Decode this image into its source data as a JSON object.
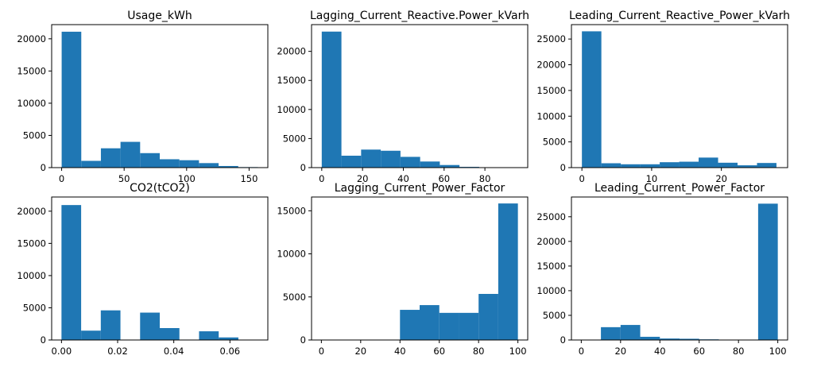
{
  "chart_data": [
    {
      "type": "bar",
      "title": "Usage_kWh",
      "bar_color": "#1f77b4",
      "grid": false,
      "xlim": [
        -8,
        165
      ],
      "ylim": [
        0,
        22200
      ],
      "xticks": [
        0,
        50,
        100,
        150
      ],
      "yticks": [
        0,
        5000,
        10000,
        15000,
        20000
      ],
      "bins": [
        0,
        15.7,
        31.4,
        47.1,
        62.8,
        78.5,
        94.2,
        109.9,
        125.6,
        141.3,
        157.0
      ],
      "counts": [
        21100,
        1050,
        3000,
        4000,
        2250,
        1300,
        1150,
        700,
        250,
        80
      ]
    },
    {
      "type": "bar",
      "title": "Lagging_Current_Reactive.Power_kVarh",
      "bar_color": "#1f77b4",
      "grid": false,
      "xlim": [
        -5,
        101
      ],
      "ylim": [
        0,
        24600
      ],
      "xticks": [
        0,
        20,
        40,
        60,
        80
      ],
      "yticks": [
        0,
        5000,
        10000,
        15000,
        20000
      ],
      "bins": [
        0,
        9.65,
        19.3,
        28.95,
        38.6,
        48.25,
        57.9,
        67.55,
        77.2,
        86.85,
        96.5
      ],
      "counts": [
        23400,
        2050,
        3100,
        2900,
        1850,
        1050,
        450,
        130,
        50,
        20
      ]
    },
    {
      "type": "bar",
      "title": "Leading_Current_Reactive_Power_kVarh",
      "bar_color": "#1f77b4",
      "grid": false,
      "xlim": [
        -1.5,
        29.5
      ],
      "ylim": [
        0,
        27800
      ],
      "xticks": [
        0,
        10,
        20
      ],
      "yticks": [
        0,
        5000,
        10000,
        15000,
        20000,
        25000
      ],
      "bins": [
        0,
        2.79,
        5.58,
        8.37,
        11.16,
        13.95,
        16.74,
        19.53,
        22.32,
        25.11,
        27.9
      ],
      "counts": [
        26500,
        850,
        650,
        650,
        1050,
        1150,
        1950,
        950,
        450,
        900
      ]
    },
    {
      "type": "bar",
      "title": "CO2(tCO2)",
      "bar_color": "#1f77b4",
      "grid": false,
      "xlim": [
        -0.0035,
        0.0735
      ],
      "ylim": [
        0,
        22200
      ],
      "xticks": [
        0.0,
        0.02,
        0.04,
        0.06
      ],
      "tick_decimals": 2,
      "yticks": [
        0,
        5000,
        10000,
        15000,
        20000
      ],
      "bins": [
        0,
        0.007,
        0.014,
        0.021,
        0.028,
        0.035,
        0.042,
        0.049,
        0.056,
        0.063,
        0.07
      ],
      "counts": [
        20950,
        1450,
        4600,
        0,
        4250,
        1850,
        0,
        1350,
        400,
        0
      ]
    },
    {
      "type": "bar",
      "title": "Lagging_Current_Power_Factor",
      "bar_color": "#1f77b4",
      "grid": false,
      "xlim": [
        -5,
        105
      ],
      "ylim": [
        0,
        16600
      ],
      "xticks": [
        0,
        20,
        40,
        60,
        80,
        100
      ],
      "yticks": [
        0,
        5000,
        10000,
        15000
      ],
      "bins": [
        0,
        10,
        20,
        30,
        40,
        50,
        60,
        70,
        80,
        90,
        100
      ],
      "counts": [
        0,
        0,
        0,
        0,
        3500,
        4050,
        3150,
        3150,
        5350,
        15850
      ]
    },
    {
      "type": "bar",
      "title": "Leading_Current_Power_Factor",
      "bar_color": "#1f77b4",
      "grid": false,
      "xlim": [
        -5,
        105
      ],
      "ylim": [
        0,
        29000
      ],
      "xticks": [
        0,
        20,
        40,
        60,
        80,
        100
      ],
      "yticks": [
        0,
        5000,
        10000,
        15000,
        20000,
        25000
      ],
      "bins": [
        0,
        10,
        20,
        30,
        40,
        50,
        60,
        70,
        80,
        90,
        100
      ],
      "counts": [
        0,
        2600,
        3050,
        650,
        300,
        250,
        130,
        0,
        0,
        27650
      ]
    }
  ]
}
